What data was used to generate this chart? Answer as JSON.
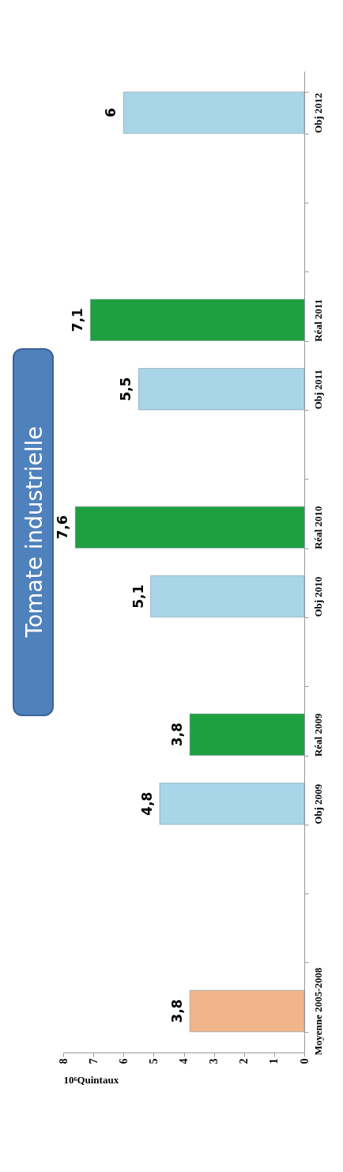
{
  "chart_data": {
    "type": "bar",
    "orientation": "horizontal",
    "title": "Tomate industrielle",
    "xlabel": "10⁶Quintaux",
    "categories": [
      "Obj 2012",
      null,
      null,
      "Réal 2011",
      "Obj 2011",
      null,
      "Réal 2010",
      "Obj 2010",
      null,
      "Réal 2009",
      "Obj 2009",
      null,
      null,
      "Moyenne 2005-2008"
    ],
    "values": [
      6,
      null,
      null,
      7.1,
      5.5,
      null,
      7.6,
      5.1,
      null,
      3.8,
      4.8,
      null,
      null,
      3.8
    ],
    "colors": [
      "#a9d5e8",
      null,
      null,
      "#1fa040",
      "#a9d5e8",
      null,
      "#1fa040",
      "#a9d5e8",
      null,
      "#1fa040",
      "#a9d5e8",
      null,
      null,
      "#f2b48a"
    ],
    "value_labels": [
      "6",
      null,
      null,
      "7,1",
      "5,5",
      null,
      "7,6",
      "5,1",
      null,
      "3,8",
      "4,8",
      null,
      null,
      "3,8"
    ],
    "xlim": [
      8,
      0
    ],
    "xticks": [
      8,
      7,
      6,
      5,
      4,
      3,
      2,
      1,
      0
    ],
    "grid": false
  }
}
